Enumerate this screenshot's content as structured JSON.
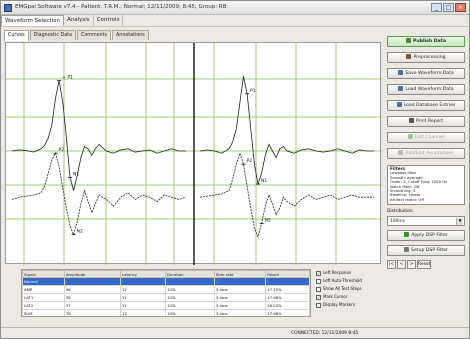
{
  "window": {
    "title": "EMGpal Software v7.4 - Patient: T.R.M.; Normal; 12/11/2009; 8:45; Group: RB",
    "controls": [
      "_",
      "□",
      "×"
    ]
  },
  "menu": {
    "items": [
      {
        "label": "Waveform Selection",
        "active": true
      },
      {
        "label": "Analysis",
        "active": false
      },
      {
        "label": "Controls",
        "active": false
      }
    ]
  },
  "subtabs": [
    {
      "label": "Curves",
      "active": true
    },
    {
      "label": "Diagnostic Data",
      "active": false
    },
    {
      "label": "Comments",
      "active": false
    },
    {
      "label": "Annotations",
      "active": false
    }
  ],
  "chart_data": {
    "type": "line",
    "title": "",
    "xlabel": "",
    "ylabel": "",
    "grid": true,
    "panels": [
      {
        "name": "left",
        "x": [
          0,
          2,
          4,
          6,
          8,
          9,
          10,
          11,
          12,
          13,
          14,
          15,
          16,
          17,
          18,
          19,
          20,
          21,
          22,
          23,
          24,
          26,
          28,
          30,
          32,
          34,
          36,
          38,
          40,
          42,
          44,
          46,
          48
        ],
        "series": [
          {
            "values": [
              0,
              0.05,
              0.02,
              -0.05,
              0.1,
              0.25,
              0.6,
              1.2,
              2.4,
              3.2,
              2.2,
              0.6,
              -1.2,
              -1.8,
              -1.1,
              -0.3,
              0.2,
              0.1,
              -0.2,
              0.1,
              0.3,
              0.0,
              -0.1,
              0.05,
              0.1,
              -0.05,
              0.0,
              0.05,
              -0.1,
              0.0,
              0.1,
              0.0,
              0.0
            ],
            "color": "#222222"
          },
          {
            "values": [
              -1.2,
              -1.1,
              -1.05,
              -1.0,
              -0.9,
              -0.6,
              0.0,
              0.6,
              0.9,
              0.3,
              -0.7,
              -1.6,
              -2.4,
              -2.8,
              -2.2,
              -1.4,
              -0.8,
              -1.3,
              -1.8,
              -1.4,
              -1.0,
              -1.2,
              -1.5,
              -1.1,
              -0.9,
              -1.2,
              -1.0,
              -1.1,
              -1.3,
              -1.0,
              -1.1,
              -1.2,
              -1.1
            ],
            "color": "#222222"
          }
        ],
        "markers": [
          "+ P1",
          "N1",
          "P2",
          "N2"
        ]
      },
      {
        "name": "right",
        "x": [
          0,
          2,
          4,
          6,
          8,
          9,
          10,
          11,
          12,
          13,
          14,
          15,
          16,
          17,
          18,
          19,
          20,
          21,
          22,
          23,
          24,
          26,
          28,
          30,
          32,
          34,
          36,
          38,
          40,
          42,
          44,
          46,
          48
        ],
        "series": [
          {
            "values": [
              0,
              0.05,
              0.0,
              -0.1,
              0.1,
              0.4,
              1.0,
              2.2,
              3.4,
              2.6,
              1.0,
              -0.6,
              -1.5,
              -1.0,
              -0.2,
              0.3,
              0.0,
              -0.3,
              0.1,
              0.2,
              0.0,
              -0.1,
              0.05,
              0.1,
              0.0,
              -0.05,
              0.0,
              0.1,
              0.0,
              -0.1,
              0.05,
              0.0,
              0.0
            ],
            "color": "#222222"
          },
          {
            "values": [
              -1.1,
              -1.05,
              -1.0,
              -0.95,
              -0.8,
              -0.3,
              0.4,
              0.9,
              0.4,
              -0.6,
              -1.6,
              -2.5,
              -2.9,
              -2.3,
              -1.5,
              -1.0,
              -1.4,
              -1.9,
              -1.6,
              -1.1,
              -1.3,
              -1.5,
              -1.2,
              -1.0,
              -1.2,
              -1.1,
              -1.0,
              -1.2,
              -1.1,
              -1.0,
              -1.1,
              -1.1,
              -1.1
            ],
            "color": "#222222"
          }
        ],
        "markers": [
          "P1",
          "N1",
          "P2",
          "N2"
        ]
      }
    ]
  },
  "right_panel": {
    "buttons": [
      {
        "label": "Publish Data",
        "style": "primary",
        "icon_color": "#3f8f2f"
      },
      {
        "label": "Preprocessing",
        "style": "normal",
        "icon_color": "#7a5a2a"
      },
      {
        "label": "Save Waveform Data",
        "style": "normal",
        "icon_color": "#4a6fa5"
      },
      {
        "label": "Load Waveform Data",
        "style": "normal",
        "icon_color": "#4a6fa5"
      },
      {
        "label": "Load Database Entries",
        "style": "normal",
        "icon_color": "#4a6fa5"
      },
      {
        "label": "Print Report",
        "style": "normal",
        "icon_color": "#555555"
      },
      {
        "label": "Edit Channel",
        "style": "disabled",
        "icon_color": "#9fc59a"
      },
      {
        "label": "Add/Edit Annotations",
        "style": "disabled",
        "icon_color": "#bbbbbb"
      }
    ],
    "filters_title": "Filters",
    "filters": [
      "Lowpass filter",
      "Smooth: average",
      "Order: 2, Cutoff Freq: 1000 Hz",
      "Notch filter: Off",
      "Smoothing: 3",
      "Baseline: Linear",
      "Artifact reject: Off"
    ],
    "distribution_label": "Distribution",
    "distribution_value": "100ms",
    "apply_button": "Apply DSP Filter",
    "settings_button": "Setup DSP Filter",
    "nav": [
      "|<",
      "<",
      ">",
      "Reset"
    ]
  },
  "table": {
    "columns": [
      "Signal",
      "Amplitude",
      "Latency",
      "Duration",
      "Stim rate",
      "Result"
    ],
    "rows": [
      {
        "cells": [
          "Normal",
          "-",
          "-",
          "-",
          "-",
          "-"
        ],
        "selected": true
      },
      {
        "cells": [
          "AMP",
          "36",
          "12",
          "10%",
          "3.4ms",
          "17.12%"
        ],
        "selected": false
      },
      {
        "cells": [
          "LAT1",
          "38",
          "11",
          "10%",
          "3.4ms",
          "17.98%"
        ],
        "selected": false
      },
      {
        "cells": [
          "LAT2",
          "37",
          "11",
          "10%",
          "3.4ms",
          "16.04%"
        ],
        "selected": false
      },
      {
        "cells": [
          "SUM",
          "78",
          "12",
          "10%",
          "3.4ms",
          "17.98%"
        ],
        "selected": false
      }
    ]
  },
  "checkboxes": [
    {
      "label": "Left Response",
      "checked": true
    },
    {
      "label": "Left Auto-Threshold",
      "checked": false
    },
    {
      "label": "Show All Test Steps",
      "checked": false
    },
    {
      "label": "Mark Cursor",
      "checked": true
    },
    {
      "label": "Display Markers",
      "checked": false
    }
  ],
  "statusbar": {
    "left": "",
    "right": "CONNECTED: 12/11/2009 8:45"
  }
}
